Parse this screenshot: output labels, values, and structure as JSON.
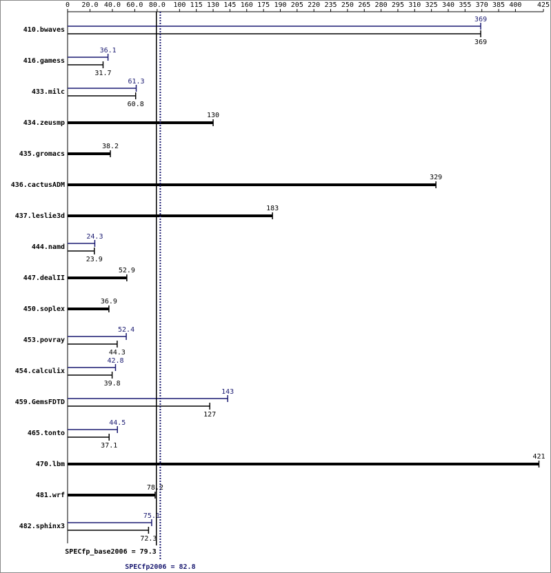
{
  "chart_data": {
    "type": "bar",
    "categories": [
      "410.bwaves",
      "416.gamess",
      "433.milc",
      "434.zeusmp",
      "435.gromacs",
      "436.cactusADM",
      "437.leslie3d",
      "444.namd",
      "447.dealII",
      "450.soplex",
      "453.povray",
      "454.calculix",
      "459.GemsFDTD",
      "465.tonto",
      "470.lbm",
      "481.wrf",
      "482.sphinx3"
    ],
    "series": [
      {
        "color": "#191970",
        "values": [
          369,
          36.1,
          61.3,
          null,
          null,
          null,
          null,
          24.3,
          null,
          null,
          52.4,
          42.8,
          143,
          44.5,
          null,
          null,
          75.1
        ]
      },
      {
        "color": "#000000",
        "values": [
          369,
          31.7,
          60.8,
          130,
          38.2,
          329,
          183,
          23.9,
          52.9,
          36.9,
          44.3,
          39.8,
          127,
          37.1,
          421,
          78.2,
          72.3
        ]
      }
    ],
    "xlim": [
      0,
      425
    ],
    "xticks": [
      0,
      {
        "value": 20,
        "label": "20.0"
      },
      {
        "value": 40,
        "label": "40.0"
      },
      {
        "value": 60,
        "label": "60.0"
      },
      {
        "value": 80,
        "label": "80.0"
      },
      100,
      115,
      130,
      145,
      160,
      175,
      190,
      205,
      220,
      235,
      250,
      265,
      280,
      295,
      310,
      325,
      340,
      355,
      370,
      385,
      400,
      425
    ],
    "reference_lines": [
      {
        "label": "SPECfp_base2006 = 79.3",
        "value": 79.3,
        "color": "#000000",
        "style": "solid"
      },
      {
        "label": "SPECfp2006 = 82.8",
        "value": 82.8,
        "color": "#191970",
        "style": "dotted"
      }
    ]
  }
}
